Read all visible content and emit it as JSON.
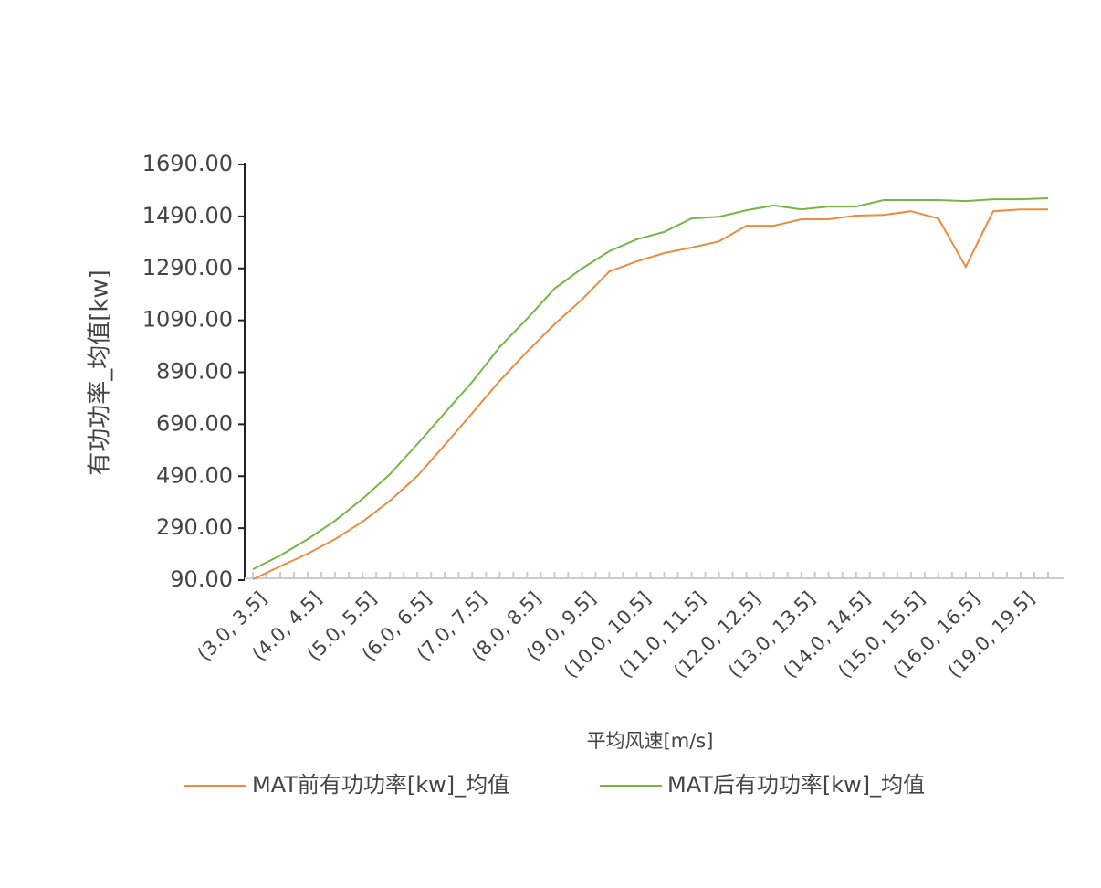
{
  "chart_data": {
    "type": "line",
    "y_label": "有功功率_均值[kw]",
    "x_label": "平均风速[m/s]",
    "categories": [
      "(3.0, 3.5]",
      null,
      "(4.0, 4.5]",
      null,
      "(5.0, 5.5]",
      null,
      "(6.0, 6.5]",
      null,
      "(7.0, 7.5]",
      null,
      "(8.0, 8.5]",
      null,
      "(9.0, 9.5]",
      null,
      "(10.0, 10.5]",
      null,
      "(11.0, 11.5]",
      null,
      "(12.0, 12.5]",
      null,
      "(13.0, 13.5]",
      null,
      "(14.0, 14.5]",
      null,
      "(15.0, 15.5]",
      null,
      "(16.0, 16.5]",
      null,
      "(19.0, 19.5]",
      null
    ],
    "series": [
      {
        "name": "MAT前有功功率[kw]_均值",
        "color": "#ed8b3f",
        "values": [
          93,
          143,
          192,
          248,
          315,
          396,
          491,
          610,
          733,
          857,
          969,
          1075,
          1170,
          1278,
          1317,
          1349,
          1370,
          1394,
          1454,
          1454,
          1479,
          1479,
          1493,
          1496,
          1510,
          1482,
          1296,
          1510,
          1517,
          1517
        ]
      },
      {
        "name": "MAT后有功功率[kw]_均值",
        "color": "#74b843",
        "values": [
          132,
          185,
          248,
          319,
          403,
          498,
          614,
          733,
          853,
          987,
          1096,
          1212,
          1289,
          1356,
          1402,
          1430,
          1482,
          1489,
          1514,
          1532,
          1517,
          1528,
          1528,
          1553,
          1553,
          1553,
          1549,
          1556,
          1556,
          1560
        ]
      }
    ],
    "ylim": [
      90,
      1690
    ],
    "yticks": [
      {
        "value": 90,
        "label": "90.00"
      },
      {
        "value": 290,
        "label": "290.00"
      },
      {
        "value": 490,
        "label": "490.00"
      },
      {
        "value": 690,
        "label": "690.00"
      },
      {
        "value": 890,
        "label": "890.00"
      },
      {
        "value": 1090,
        "label": "1090.00"
      },
      {
        "value": 1290,
        "label": "1290.00"
      },
      {
        "value": 1490,
        "label": "1490.00"
      },
      {
        "value": 1690,
        "label": "1690.00"
      }
    ],
    "legend": "bottom"
  }
}
